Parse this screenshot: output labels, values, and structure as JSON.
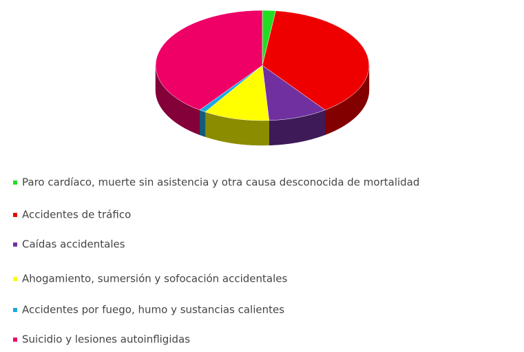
{
  "chart_data": {
    "type": "pie",
    "categories": [
      "Paro cardíaco, muerte sin asistencia y otra causa desconocida de mortalidad",
      "Accidentes de tráfico",
      "Caídas accidentales",
      "Ahogamiento, sumersión y sofocación accidentales",
      "Accidentes por fuego, humo y sustancias calientes",
      "Suicidio y lesiones autoinfligidas"
    ],
    "values": [
      2,
      38,
      9,
      10,
      1,
      40
    ],
    "colors": [
      "#22dd22",
      "#ee0000",
      "#7030a0",
      "#ffff00",
      "#1fa8e0",
      "#ee0066"
    ],
    "legend": "bottom"
  }
}
